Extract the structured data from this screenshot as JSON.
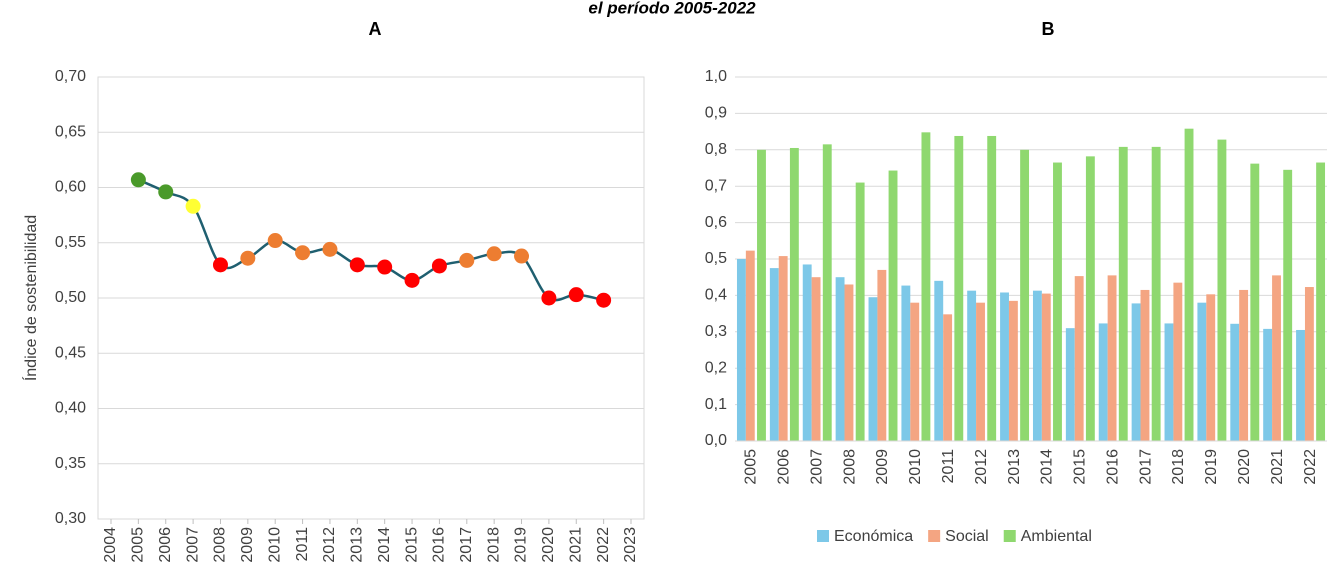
{
  "subtitle": "el período 2005-2022",
  "chart_data": [
    {
      "type": "line",
      "title": "A",
      "y_label": "Índice de sostenibilidad",
      "x": [
        2005,
        2006,
        2007,
        2008,
        2009,
        2010,
        2011,
        2012,
        2013,
        2014,
        2015,
        2016,
        2017,
        2018,
        2019,
        2020,
        2021,
        2022
      ],
      "values": [
        0.607,
        0.596,
        0.583,
        0.53,
        0.536,
        0.552,
        0.541,
        0.544,
        0.53,
        0.528,
        0.516,
        0.529,
        0.534,
        0.54,
        0.538,
        0.5,
        0.503,
        0.498
      ],
      "color": "#1f5f70",
      "point_colors": [
        "#4a9a2a",
        "#4a9a2a",
        "#ffff33",
        "#ff0000",
        "#ed7d31",
        "#ed7d31",
        "#ed7d31",
        "#ed7d31",
        "#ff0000",
        "#ff0000",
        "#ff0000",
        "#ff0000",
        "#ed7d31",
        "#ed7d31",
        "#ed7d31",
        "#ff0000",
        "#ff0000",
        "#ff0000"
      ],
      "xlim": [
        2004,
        2023
      ],
      "xticks": [
        2004,
        2005,
        2006,
        2007,
        2008,
        2009,
        2010,
        2011,
        2012,
        2013,
        2014,
        2015,
        2016,
        2017,
        2018,
        2019,
        2020,
        2021,
        2022,
        2023
      ],
      "ylim": [
        0.3,
        0.7
      ],
      "yticks": [
        {
          "value": 0.3,
          "label": "0,30"
        },
        {
          "value": 0.35,
          "label": "0,35"
        },
        {
          "value": 0.4,
          "label": "0,40"
        },
        {
          "value": 0.45,
          "label": "0,45"
        },
        {
          "value": 0.5,
          "label": "0,50"
        },
        {
          "value": 0.55,
          "label": "0,55"
        },
        {
          "value": 0.6,
          "label": "0,60"
        },
        {
          "value": 0.65,
          "label": "0,65"
        },
        {
          "value": 0.7,
          "label": "0,70"
        }
      ],
      "grid": true
    },
    {
      "type": "bar",
      "title": "B",
      "categories": [
        "2005",
        "2006",
        "2007",
        "2008",
        "2009",
        "2010",
        "2011",
        "2012",
        "2013",
        "2014",
        "2015",
        "2016",
        "2017",
        "2018",
        "2019",
        "2020",
        "2021",
        "2022"
      ],
      "series": [
        {
          "name": "Económica",
          "color": "#7dc8e8",
          "values": [
            0.5,
            0.475,
            0.485,
            0.45,
            0.395,
            0.427,
            0.44,
            0.413,
            0.408,
            0.413,
            0.31,
            0.323,
            0.378,
            0.323,
            0.38,
            0.322,
            0.308,
            0.305
          ]
        },
        {
          "name": "Social",
          "color": "#f4a582",
          "values": [
            0.523,
            0.508,
            0.45,
            0.43,
            0.47,
            0.38,
            0.348,
            0.38,
            0.385,
            0.405,
            0.453,
            0.455,
            0.415,
            0.435,
            0.403,
            0.415,
            0.455,
            0.423
          ]
        },
        {
          "name": "Ambiental",
          "color": "#8fd86f",
          "values": [
            0.8,
            0.805,
            0.815,
            0.71,
            0.743,
            0.848,
            0.838,
            0.838,
            0.8,
            0.765,
            0.782,
            0.808,
            0.808,
            0.858,
            0.828,
            0.762,
            0.745,
            0.765
          ]
        }
      ],
      "ylim": [
        0,
        1.0
      ],
      "yticks": [
        {
          "value": 0,
          "label": "0,0"
        },
        {
          "value": 0.1,
          "label": "0,1"
        },
        {
          "value": 0.2,
          "label": "0,2"
        },
        {
          "value": 0.3,
          "label": "0,3"
        },
        {
          "value": 0.4,
          "label": "0,4"
        },
        {
          "value": 0.5,
          "label": "0,5"
        },
        {
          "value": 0.6,
          "label": "0,6"
        },
        {
          "value": 0.7,
          "label": "0,7"
        },
        {
          "value": 0.8,
          "label": "0,8"
        },
        {
          "value": 0.9,
          "label": "0,9"
        },
        {
          "value": 1.0,
          "label": "1,0"
        }
      ],
      "grid": true,
      "legend": "bottom"
    }
  ]
}
